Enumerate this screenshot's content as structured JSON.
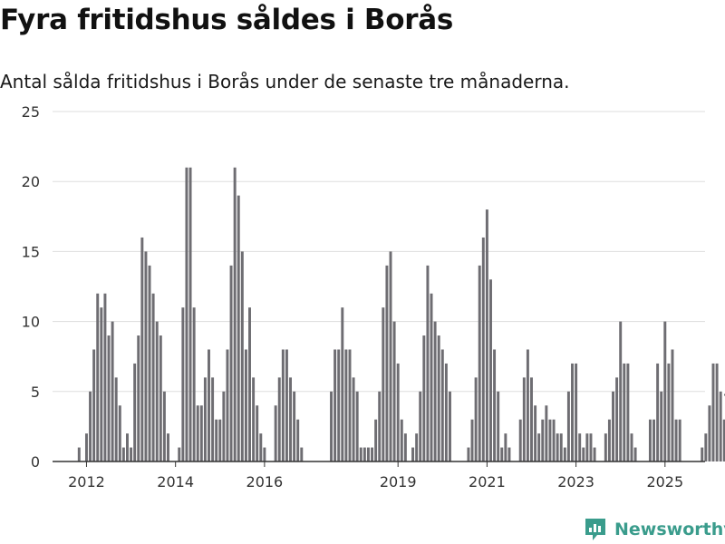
{
  "title": "Fyra fritidshus såldes i Borås",
  "subtitle": "Antal sålda fritidshus i Borås under de senaste tre månaderna.",
  "brand": {
    "name": "Newsworthy",
    "icon": "newsworthy-logo-icon",
    "color": "#3a9c8c"
  },
  "colors": {
    "bar": "#6e6d72",
    "highlight": "#2a9d93",
    "grid": "#dddddd",
    "axis": "#333333"
  },
  "chart_data": {
    "type": "bar",
    "title": "Fyra fritidshus såldes i Borås",
    "xlabel": "",
    "ylabel": "",
    "ylim": [
      0,
      25
    ],
    "yticks": [
      0,
      5,
      10,
      15,
      20,
      25
    ],
    "grid": true,
    "start": {
      "year": 2011,
      "month": 10
    },
    "x_ticks": [
      "2012",
      "2014",
      "2016",
      "2019",
      "2021",
      "2023",
      "2025"
    ],
    "x_tick_positions": [
      2012,
      2014,
      2016,
      2019,
      2021,
      2023,
      2025
    ],
    "x_range": [
      2011.4,
      2025.9
    ],
    "values": [
      0,
      1,
      0,
      2,
      5,
      8,
      12,
      11,
      12,
      9,
      10,
      6,
      4,
      1,
      2,
      1,
      7,
      9,
      16,
      15,
      14,
      12,
      10,
      9,
      5,
      2,
      0,
      0,
      1,
      11,
      21,
      21,
      11,
      4,
      4,
      6,
      8,
      6,
      3,
      3,
      5,
      8,
      14,
      21,
      19,
      15,
      8,
      11,
      6,
      4,
      2,
      1,
      0,
      0,
      4,
      6,
      8,
      8,
      6,
      5,
      3,
      1,
      0,
      0,
      0,
      0,
      0,
      0,
      0,
      5,
      8,
      8,
      11,
      8,
      8,
      6,
      5,
      1,
      1,
      1,
      1,
      3,
      5,
      11,
      14,
      15,
      10,
      7,
      3,
      2,
      0,
      1,
      2,
      5,
      9,
      14,
      12,
      10,
      9,
      8,
      7,
      5,
      0,
      0,
      0,
      0,
      1,
      3,
      6,
      14,
      16,
      18,
      13,
      8,
      5,
      1,
      2,
      1,
      0,
      0,
      3,
      6,
      8,
      6,
      4,
      2,
      3,
      4,
      3,
      3,
      2,
      2,
      1,
      5,
      7,
      7,
      2,
      1,
      2,
      2,
      1,
      0,
      0,
      2,
      3,
      5,
      6,
      10,
      7,
      7,
      2,
      1,
      0,
      0,
      0,
      3,
      3,
      7,
      5,
      10,
      7,
      8,
      3,
      3,
      0,
      0,
      0,
      0,
      0,
      1,
      2,
      4,
      7,
      7,
      5,
      3,
      4
    ],
    "highlight_label": "4"
  }
}
